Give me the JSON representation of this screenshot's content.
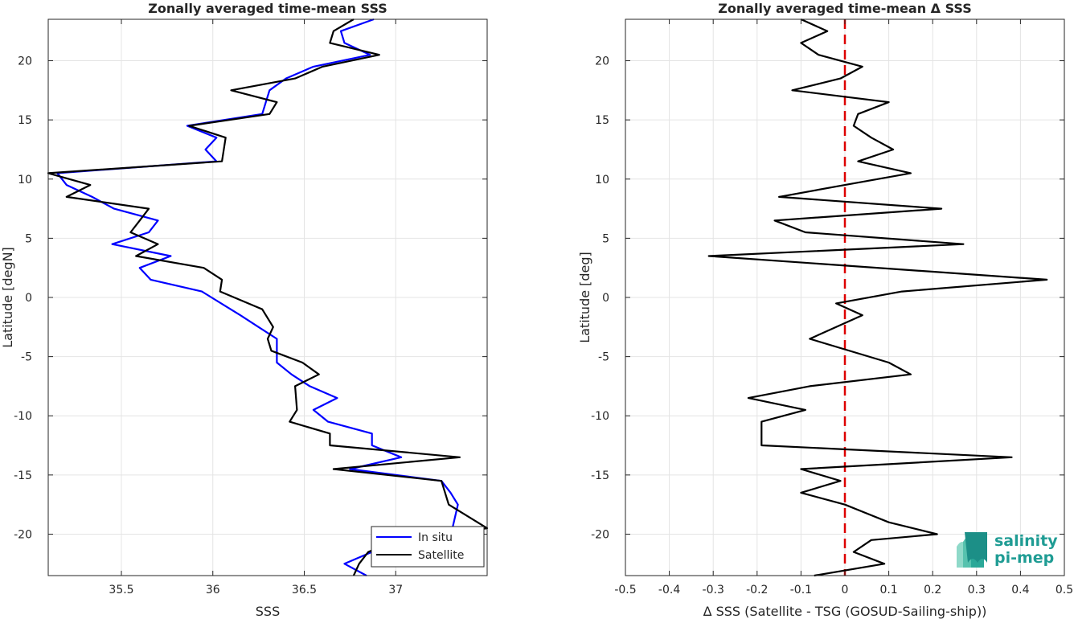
{
  "chart_data": [
    {
      "type": "line",
      "title": "Zonally averaged time-mean SSS",
      "xlabel": "SSS",
      "ylabel": "Latitude [degN]",
      "xlim": [
        35.1,
        37.5
      ],
      "ylim": [
        -23.5,
        23.5
      ],
      "xticks": [
        35.5,
        36,
        36.5,
        37
      ],
      "xtick_labels": [
        "35.5",
        "36",
        "36.5",
        "37"
      ],
      "yticks": [
        -20,
        -15,
        -10,
        -5,
        0,
        5,
        10,
        15,
        20
      ],
      "ytick_labels": [
        "-20",
        "-15",
        "-10",
        "-5",
        "0",
        "5",
        "10",
        "15",
        "20"
      ],
      "grid": true,
      "legend_position": "bottom-right",
      "series": [
        {
          "name": "In situ",
          "color": "#0000ff",
          "points": [
            [
              36.88,
              23.5
            ],
            [
              36.7,
              22.5
            ],
            [
              36.72,
              21.5
            ],
            [
              36.86,
              20.5
            ],
            [
              36.55,
              19.5
            ],
            [
              36.4,
              18.5
            ],
            [
              36.31,
              17.5
            ],
            [
              36.29,
              16.5
            ],
            [
              36.27,
              15.5
            ],
            [
              35.86,
              14.5
            ],
            [
              36.02,
              13.5
            ],
            [
              35.96,
              12.5
            ],
            [
              36.02,
              11.5
            ],
            [
              35.15,
              10.5
            ],
            [
              35.2,
              9.5
            ],
            [
              35.34,
              8.5
            ],
            [
              35.46,
              7.5
            ],
            [
              35.7,
              6.5
            ],
            [
              35.65,
              5.5
            ],
            [
              35.45,
              4.5
            ],
            [
              35.77,
              3.5
            ],
            [
              35.6,
              2.5
            ],
            [
              35.66,
              1.5
            ],
            [
              35.94,
              0.5
            ],
            [
              36.15,
              -1.5
            ],
            [
              36.25,
              -2.5
            ],
            [
              36.35,
              -3.5
            ],
            [
              36.35,
              -5.5
            ],
            [
              36.43,
              -6.5
            ],
            [
              36.53,
              -7.5
            ],
            [
              36.68,
              -8.5
            ],
            [
              36.55,
              -9.5
            ],
            [
              36.63,
              -10.5
            ],
            [
              36.87,
              -11.5
            ],
            [
              36.87,
              -12.5
            ],
            [
              37.03,
              -13.5
            ],
            [
              36.75,
              -14.5
            ],
            [
              37.25,
              -15.5
            ],
            [
              37.3,
              -16.5
            ],
            [
              37.34,
              -17.5
            ],
            [
              37.31,
              -19.5
            ],
            [
              37.29,
              -20.5
            ],
            [
              36.87,
              -21.5
            ],
            [
              36.72,
              -22.5
            ],
            [
              36.84,
              -23.5
            ]
          ]
        },
        {
          "name": "Satellite",
          "color": "#000000",
          "points": [
            [
              36.77,
              23.5
            ],
            [
              36.66,
              22.5
            ],
            [
              36.64,
              21.5
            ],
            [
              36.91,
              20.5
            ],
            [
              36.6,
              19.5
            ],
            [
              36.45,
              18.5
            ],
            [
              36.1,
              17.5
            ],
            [
              36.35,
              16.5
            ],
            [
              36.31,
              15.5
            ],
            [
              35.87,
              14.5
            ],
            [
              36.07,
              13.5
            ],
            [
              36.06,
              12.5
            ],
            [
              36.05,
              11.5
            ],
            [
              35.1,
              10.5
            ],
            [
              35.33,
              9.5
            ],
            [
              35.2,
              8.5
            ],
            [
              35.65,
              7.5
            ],
            [
              35.6,
              6.5
            ],
            [
              35.55,
              5.5
            ],
            [
              35.7,
              4.5
            ],
            [
              35.58,
              3.5
            ],
            [
              35.95,
              2.5
            ],
            [
              36.05,
              1.5
            ],
            [
              36.04,
              0.5
            ],
            [
              36.27,
              -1.0
            ],
            [
              36.33,
              -2.5
            ],
            [
              36.3,
              -3.5
            ],
            [
              36.32,
              -4.5
            ],
            [
              36.49,
              -5.5
            ],
            [
              36.58,
              -6.5
            ],
            [
              36.45,
              -7.5
            ],
            [
              36.46,
              -9.5
            ],
            [
              36.42,
              -10.5
            ],
            [
              36.64,
              -11.5
            ],
            [
              36.64,
              -12.5
            ],
            [
              37.35,
              -13.5
            ],
            [
              36.66,
              -14.5
            ],
            [
              37.25,
              -15.5
            ],
            [
              37.29,
              -17.5
            ],
            [
              37.5,
              -19.5
            ],
            [
              37.0,
              -20.5
            ],
            [
              36.85,
              -21.5
            ],
            [
              36.8,
              -22.5
            ],
            [
              36.77,
              -23.5
            ]
          ]
        }
      ]
    },
    {
      "type": "line",
      "title": "Zonally averaged time-mean Δ SSS",
      "xlabel": "Δ SSS (Satellite - TSG (GOSUD-Sailing-ship))",
      "ylabel": "Latitude [deg]",
      "xlim": [
        -0.5,
        0.5
      ],
      "ylim": [
        -23.5,
        23.5
      ],
      "xticks": [
        -0.5,
        -0.4,
        -0.3,
        -0.2,
        -0.1,
        0,
        0.1,
        0.2,
        0.3,
        0.4,
        0.5
      ],
      "xtick_labels": [
        "-0.5",
        "-0.4",
        "-0.3",
        "-0.2",
        "-0.1",
        "0",
        "0.1",
        "0.2",
        "0.3",
        "0.4",
        "0.5"
      ],
      "yticks": [
        -20,
        -15,
        -10,
        -5,
        0,
        5,
        10,
        15,
        20
      ],
      "ytick_labels": [
        "-20",
        "-15",
        "-10",
        "-5",
        "0",
        "5",
        "10",
        "15",
        "20"
      ],
      "grid": true,
      "zero_line_color": "#dd0000",
      "series": [
        {
          "color": "#000000",
          "points": [
            [
              -0.1,
              23.5
            ],
            [
              -0.04,
              22.5
            ],
            [
              -0.1,
              21.5
            ],
            [
              -0.06,
              20.5
            ],
            [
              0.04,
              19.5
            ],
            [
              -0.01,
              18.5
            ],
            [
              -0.12,
              17.5
            ],
            [
              0.1,
              16.5
            ],
            [
              0.03,
              15.5
            ],
            [
              0.02,
              14.5
            ],
            [
              0.06,
              13.5
            ],
            [
              0.11,
              12.5
            ],
            [
              0.03,
              11.5
            ],
            [
              0.15,
              10.5
            ],
            [
              0.0,
              9.5
            ],
            [
              -0.15,
              8.5
            ],
            [
              0.22,
              7.5
            ],
            [
              -0.16,
              6.5
            ],
            [
              -0.09,
              5.5
            ],
            [
              0.27,
              4.5
            ],
            [
              -0.31,
              3.5
            ],
            [
              0.46,
              1.5
            ],
            [
              0.13,
              0.5
            ],
            [
              -0.02,
              -0.5
            ],
            [
              0.04,
              -1.5
            ],
            [
              -0.08,
              -3.5
            ],
            [
              0.1,
              -5.5
            ],
            [
              0.15,
              -6.5
            ],
            [
              -0.08,
              -7.5
            ],
            [
              -0.22,
              -8.5
            ],
            [
              -0.09,
              -9.5
            ],
            [
              -0.19,
              -10.5
            ],
            [
              -0.19,
              -12.5
            ],
            [
              0.38,
              -13.5
            ],
            [
              -0.1,
              -14.5
            ],
            [
              -0.01,
              -15.5
            ],
            [
              -0.1,
              -16.5
            ],
            [
              0.0,
              -17.5
            ],
            [
              0.1,
              -19.0
            ],
            [
              0.21,
              -20.0
            ],
            [
              0.06,
              -20.5
            ],
            [
              0.02,
              -21.5
            ],
            [
              0.09,
              -22.5
            ],
            [
              -0.07,
              -23.5
            ]
          ]
        }
      ]
    }
  ],
  "logo": {
    "line1": "salinity",
    "line2": "pi-mep"
  }
}
